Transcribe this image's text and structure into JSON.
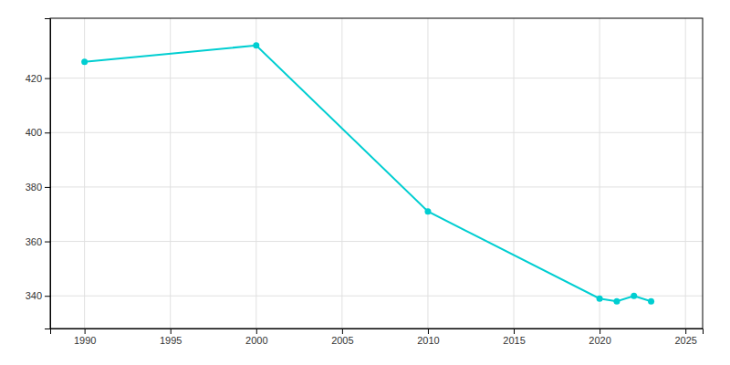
{
  "chart_data": {
    "type": "line",
    "x": [
      1990,
      2000,
      2010,
      2020,
      2021,
      2022,
      2023
    ],
    "values": [
      426,
      432,
      371,
      339,
      338,
      340,
      338
    ],
    "color": "#00CED1",
    "marker": "circle",
    "xlim": [
      1988,
      2026
    ],
    "ylim": [
      328,
      442
    ],
    "xticks": [
      1990,
      1995,
      2000,
      2005,
      2010,
      2015,
      2020,
      2025
    ],
    "yticks": [
      340,
      360,
      380,
      400,
      420
    ],
    "grid": true
  }
}
